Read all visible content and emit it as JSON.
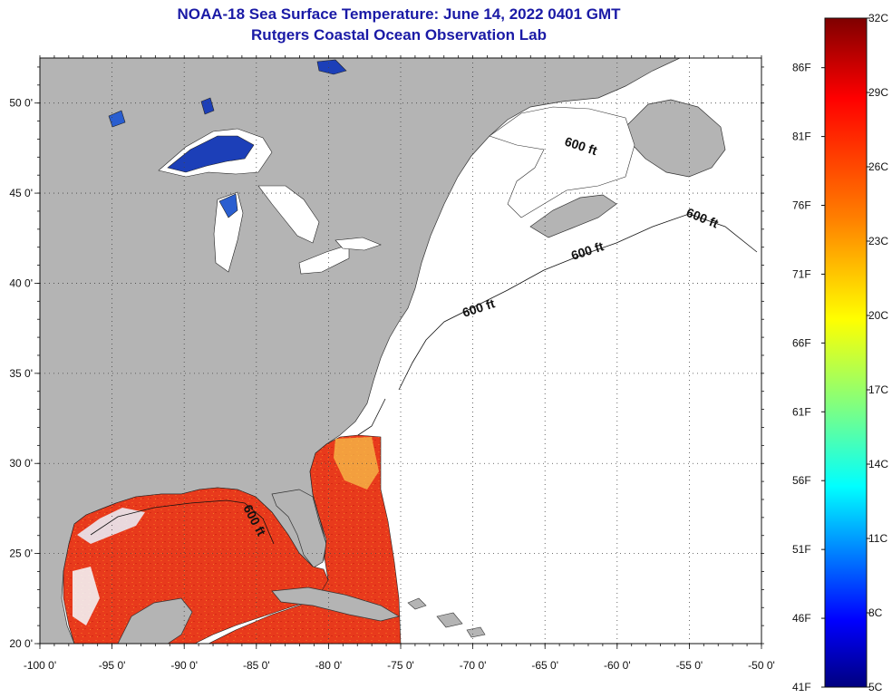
{
  "header": {
    "title_line1": "NOAA-18 Sea Surface Temperature:  June 14, 2022 0401 GMT",
    "title_line2": "Rutgers Coastal Ocean Observation Lab"
  },
  "map": {
    "lat_range": [
      20,
      52.5
    ],
    "lon_range": [
      -100,
      -50
    ],
    "lat_ticks": [
      "20 0'",
      "25 0'",
      "30 0'",
      "35 0'",
      "40 0'",
      "45 0'",
      "50 0'"
    ],
    "lon_ticks": [
      "-100 0'",
      "-95 0'",
      "-90 0'",
      "-85 0'",
      "-80 0'",
      "-75 0'",
      "-70 0'",
      "-65 0'",
      "-60 0'",
      "-55 0'",
      "-50 0'"
    ],
    "contour_label": "600 ft",
    "land_color": "#b4b4b4",
    "ocean_color": "#ffffff",
    "sst_gulf_color": "#ee3a1c"
  },
  "colorbar": {
    "celsius_labels": [
      "32C",
      "29C",
      "26C",
      "23C",
      "20C",
      "17C",
      "14C",
      "11C",
      "8C",
      "5C"
    ],
    "fahrenheit_labels": [
      "86F",
      "81F",
      "76F",
      "71F",
      "66F",
      "61F",
      "56F",
      "51F",
      "46F",
      "41F"
    ],
    "range_c": [
      5,
      32
    ],
    "colors": [
      "#7f0000",
      "#ff0000",
      "#ff8000",
      "#ffff00",
      "#80ff80",
      "#00ffff",
      "#0080ff",
      "#0000ff",
      "#00007f"
    ]
  }
}
